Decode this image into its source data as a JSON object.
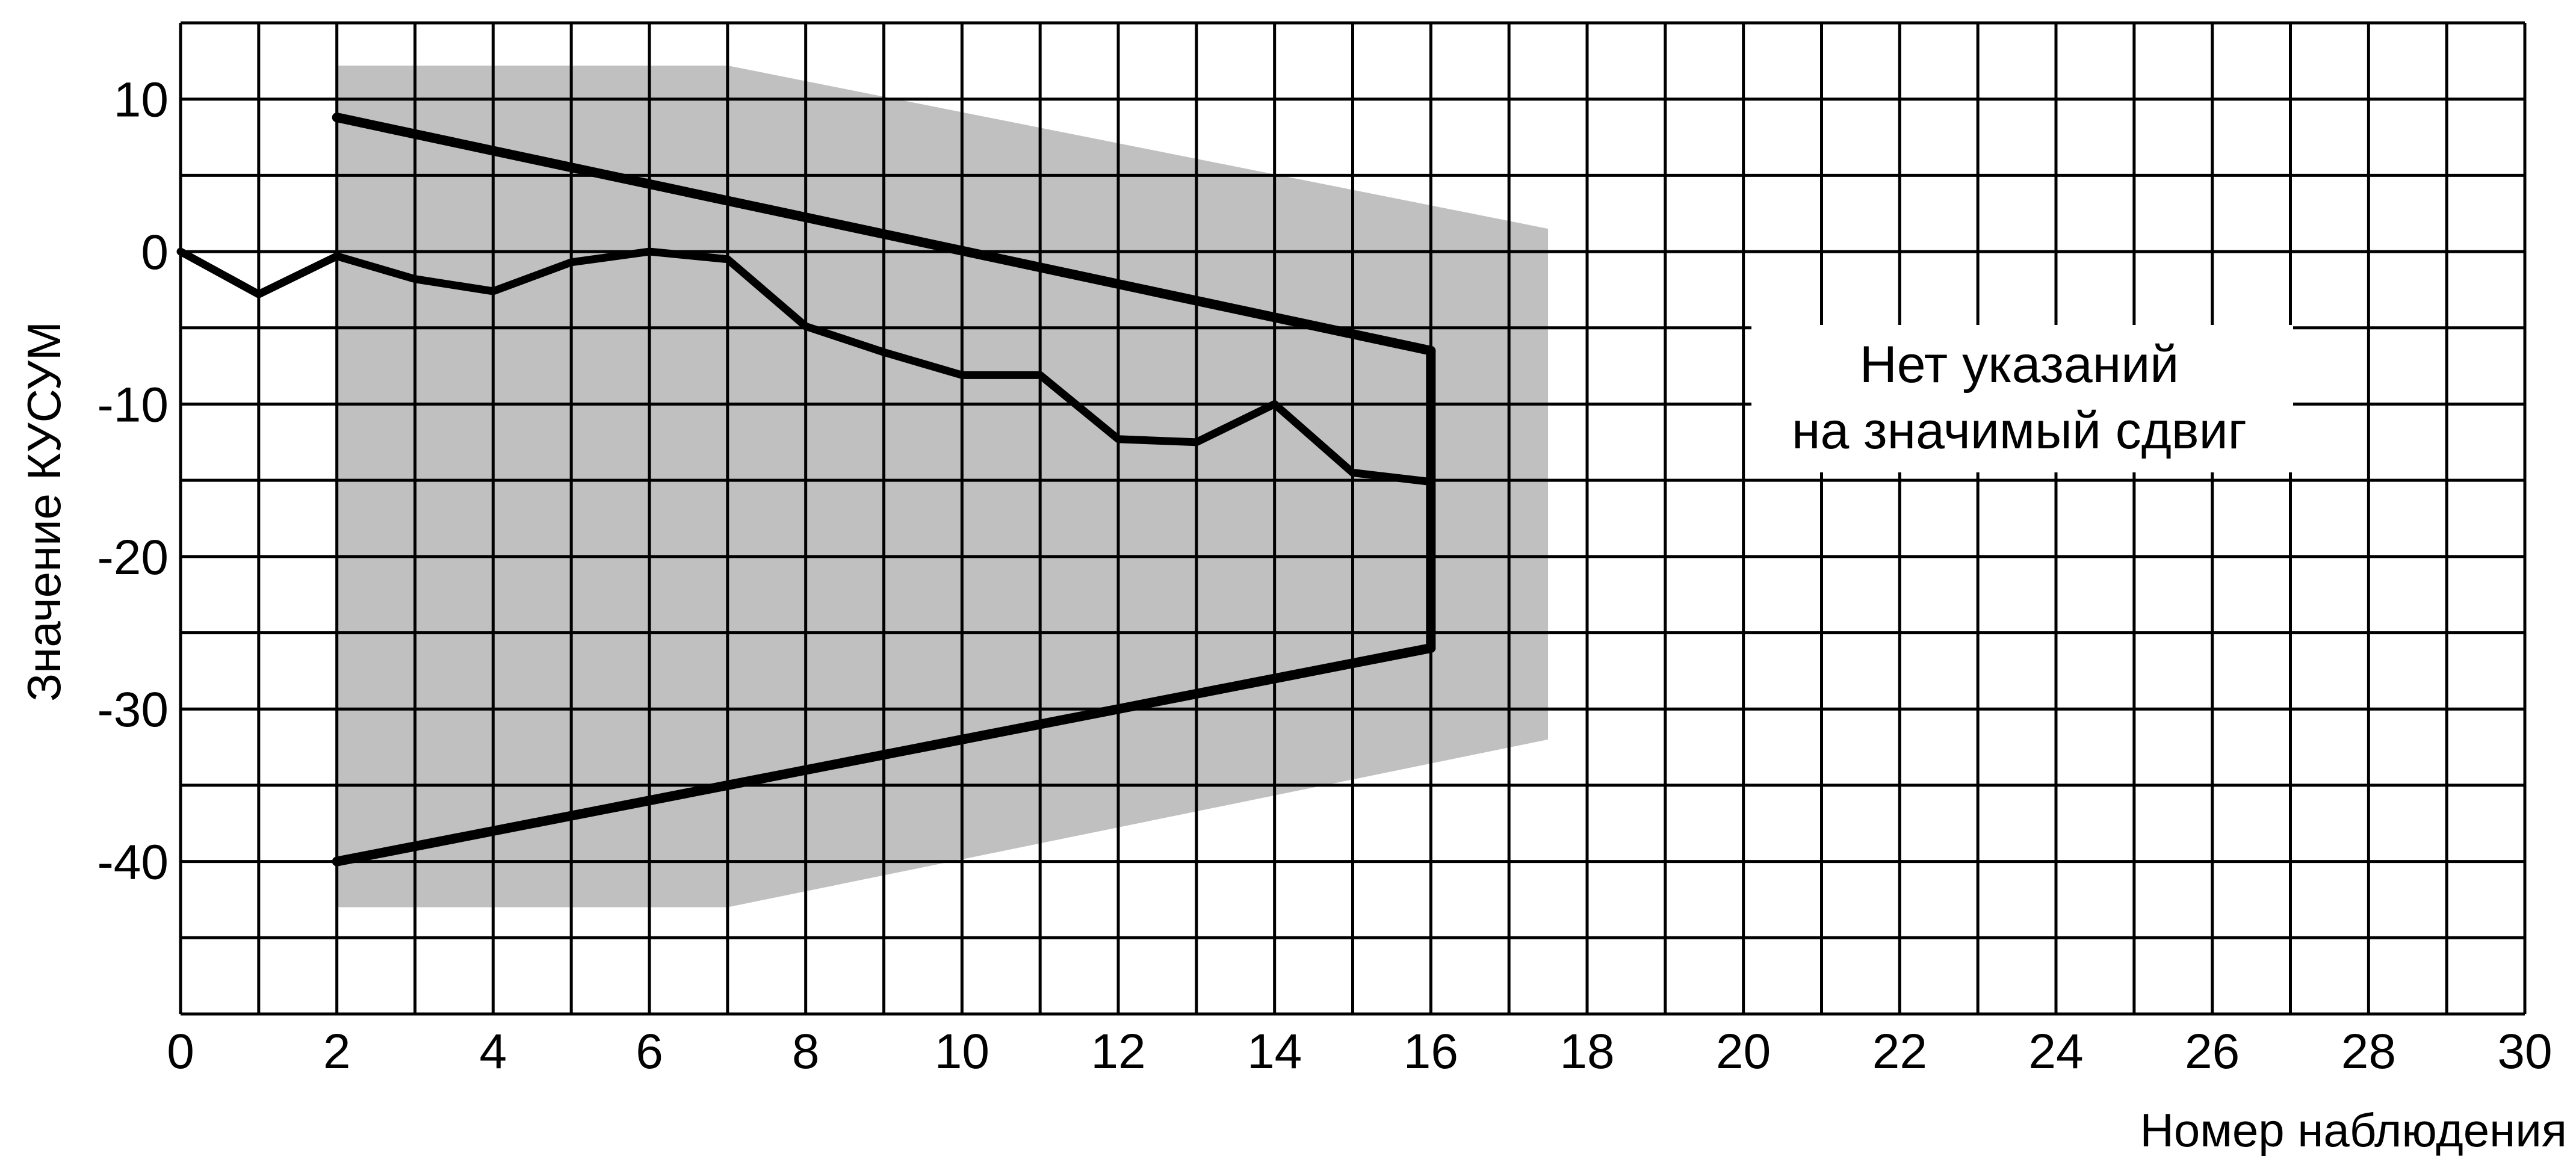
{
  "chart_data": {
    "type": "line",
    "xlabel": "Номер наблюдения",
    "ylabel": "Значение КУСУМ",
    "xlim": [
      0,
      30
    ],
    "ylim": [
      -50,
      15
    ],
    "x_ticks": [
      0,
      2,
      4,
      6,
      8,
      10,
      12,
      14,
      16,
      18,
      20,
      22,
      24,
      26,
      28,
      30
    ],
    "y_ticks": [
      10,
      0,
      -10,
      -20,
      -30,
      -40
    ],
    "grid": {
      "x_step": 1,
      "y_step": 5,
      "shown": true
    },
    "annotation": [
      "Нет указаний",
      "на значимый сдвиг"
    ],
    "series": [
      {
        "x": [
          0,
          1,
          2,
          3,
          4,
          5,
          6,
          7,
          8,
          9,
          10,
          11,
          12,
          13,
          14,
          15,
          16
        ],
        "values": [
          0,
          -2.8,
          -0.3,
          -1.8,
          -2.6,
          -0.7,
          0,
          -0.5,
          -4.9,
          -6.6,
          -8.1,
          -8.1,
          -12.3,
          -12.5,
          -10.0,
          -14.5,
          -15.1
        ]
      }
    ],
    "v_mask": {
      "upper_arm": [
        [
          2,
          8.8
        ],
        [
          16,
          -6.5
        ]
      ],
      "lower_arm": [
        [
          2,
          -40
        ],
        [
          16,
          -26
        ]
      ],
      "vertex_x": 16,
      "shaded_region": [
        [
          2,
          12.2
        ],
        [
          7,
          12.2
        ],
        [
          17.5,
          1.5
        ],
        [
          17.5,
          -32
        ],
        [
          7,
          -43
        ],
        [
          2,
          -43
        ]
      ],
      "fill_color": "#c0c0c0"
    },
    "colors": {
      "line": "#000000",
      "grid": "#000000",
      "shade": "#c0c0c0"
    }
  }
}
